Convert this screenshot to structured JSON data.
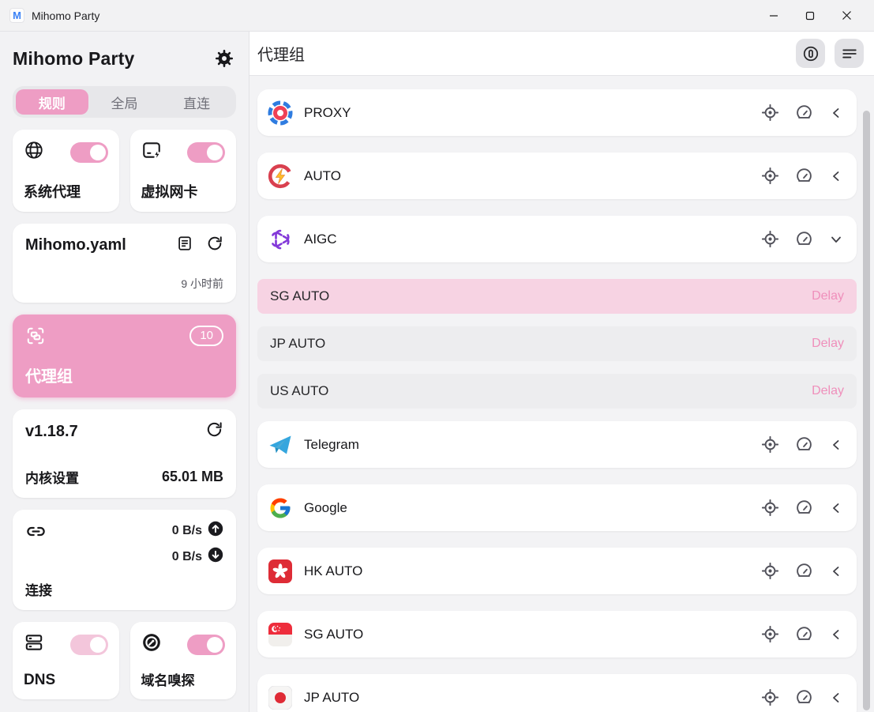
{
  "titlebar": {
    "app_title": "Mihomo Party"
  },
  "sidebar": {
    "brand": "Mihomo Party",
    "tabs": [
      {
        "label": "规则",
        "active": true
      },
      {
        "label": "全局",
        "active": false
      },
      {
        "label": "直连",
        "active": false
      }
    ],
    "cards": {
      "system_proxy": {
        "label": "系统代理",
        "enabled": true
      },
      "tun": {
        "label": "虚拟网卡",
        "enabled": true
      },
      "profile": {
        "name": "Mihomo.yaml",
        "updated": "9 小时前"
      },
      "proxy_groups": {
        "label": "代理组",
        "badge": "10"
      },
      "core": {
        "version": "v1.18.7",
        "label": "内核设置",
        "memory": "65.01 MB"
      },
      "connections": {
        "label": "连接",
        "upload": "0 B/s",
        "download": "0 B/s"
      },
      "dns": {
        "label": "DNS",
        "enabled": true
      },
      "sniff": {
        "label": "域名嗅探",
        "enabled": true
      }
    }
  },
  "main": {
    "title": "代理组",
    "groups": [
      {
        "name": "PROXY",
        "icon": "proxy-target",
        "expanded": false
      },
      {
        "name": "AUTO",
        "icon": "auto-bolt",
        "expanded": false
      },
      {
        "name": "AIGC",
        "icon": "openai",
        "expanded": true,
        "children": [
          {
            "name": "SG AUTO",
            "delay_label": "Delay",
            "selected": true
          },
          {
            "name": "JP AUTO",
            "delay_label": "Delay",
            "selected": false
          },
          {
            "name": "US AUTO",
            "delay_label": "Delay",
            "selected": false
          }
        ]
      },
      {
        "name": "Telegram",
        "icon": "telegram",
        "expanded": false
      },
      {
        "name": "Google",
        "icon": "google",
        "expanded": false
      },
      {
        "name": "HK AUTO",
        "icon": "flag-hk",
        "expanded": false
      },
      {
        "name": "SG AUTO",
        "icon": "flag-sg",
        "expanded": false
      },
      {
        "name": "JP AUTO",
        "icon": "flag-jp",
        "expanded": false
      }
    ]
  },
  "colors": {
    "accent_pink": "#ee9dc4",
    "accent_pink_light": "#f3c6db",
    "selected_subrow": "#f7d3e3",
    "delay_text": "#ef8fbb",
    "background": "#f3f3f5"
  }
}
